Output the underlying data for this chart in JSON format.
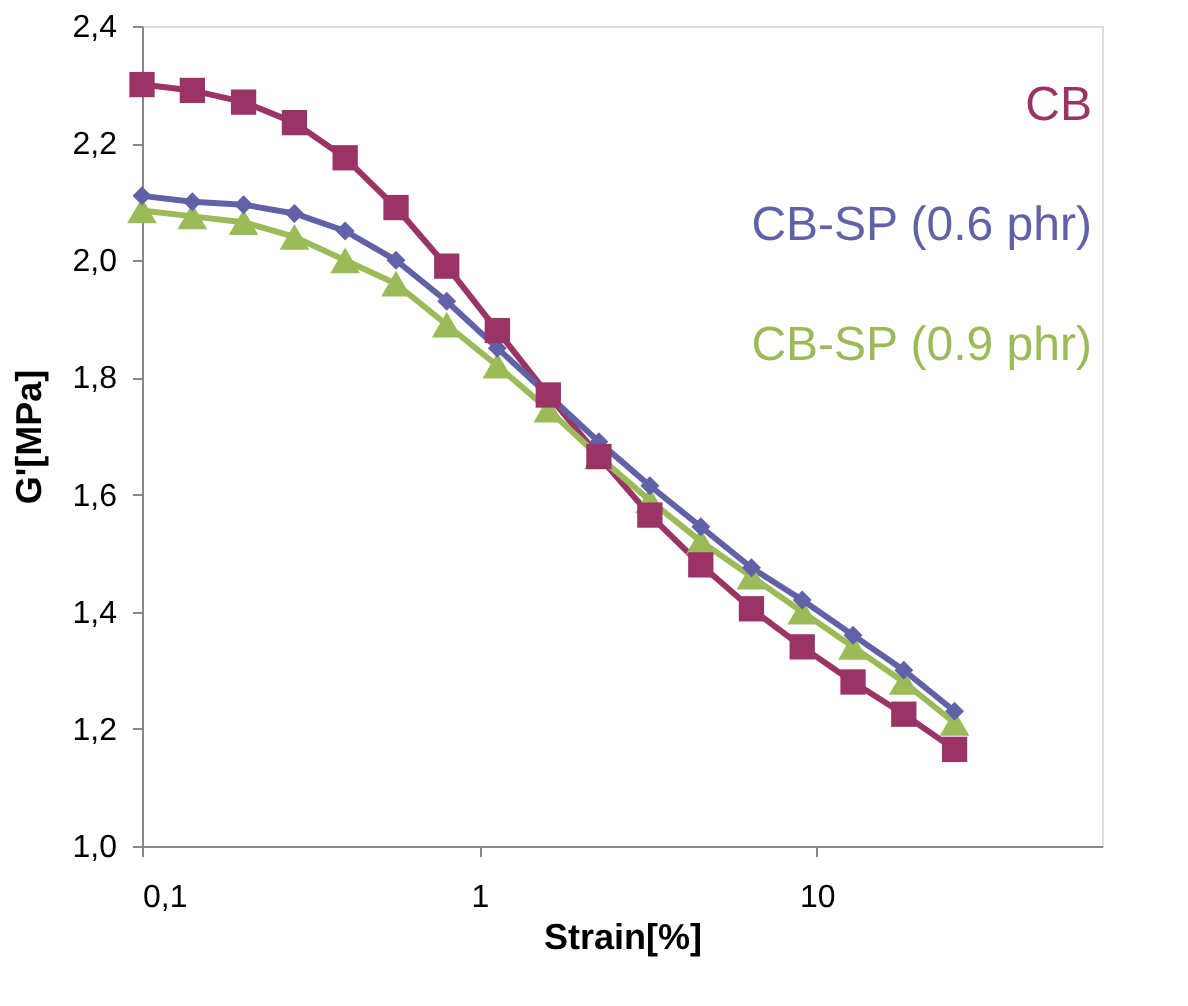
{
  "chart_data": {
    "type": "line",
    "xlabel": "Strain[%]",
    "ylabel": "G'[MPa]",
    "log": "x",
    "x": [
      0.1,
      0.141,
      0.2,
      0.283,
      0.4,
      0.566,
      0.8,
      1.13,
      1.6,
      2.26,
      3.2,
      4.53,
      6.4,
      9.05,
      12.8,
      18.1,
      25.6
    ],
    "xlim": [
      0.1,
      70
    ],
    "xticks": [
      {
        "value": 0.1,
        "label": "0,1"
      },
      1,
      10
    ],
    "ylim": [
      1.0,
      2.4
    ],
    "yticks": [
      {
        "value": 1.0,
        "label": "1,0"
      },
      {
        "value": 1.2,
        "label": "1,2"
      },
      {
        "value": 1.4,
        "label": "1,4"
      },
      {
        "value": 1.6,
        "label": "1,6"
      },
      {
        "value": 1.8,
        "label": "1,8"
      },
      {
        "value": 2.0,
        "label": "2,0"
      },
      {
        "value": 2.2,
        "label": "2,2"
      },
      {
        "value": 2.4,
        "label": "2,4"
      }
    ],
    "grid": false,
    "legend": "top right",
    "series": [
      {
        "name": "CB",
        "color": "#9b3466",
        "marker": "square",
        "values": [
          2.3,
          2.29,
          2.27,
          2.235,
          2.175,
          2.09,
          1.99,
          1.88,
          1.77,
          1.665,
          1.565,
          1.48,
          1.405,
          1.34,
          1.28,
          1.225,
          1.165
        ]
      },
      {
        "name": "CB-SP (0.6 phr)",
        "color": "#6161a8",
        "marker": "diamond",
        "values": [
          2.11,
          2.1,
          2.095,
          2.08,
          2.05,
          2.0,
          1.93,
          1.85,
          1.77,
          1.69,
          1.615,
          1.545,
          1.475,
          1.42,
          1.36,
          1.3,
          1.23
        ]
      },
      {
        "name": "CB-SP (0.9 phr)",
        "color": "#9bbb59",
        "marker": "triangle",
        "values": [
          2.085,
          2.075,
          2.065,
          2.04,
          2.0,
          1.96,
          1.89,
          1.82,
          1.745,
          1.665,
          1.59,
          1.52,
          1.46,
          1.4,
          1.34,
          1.28,
          1.21
        ]
      }
    ]
  }
}
